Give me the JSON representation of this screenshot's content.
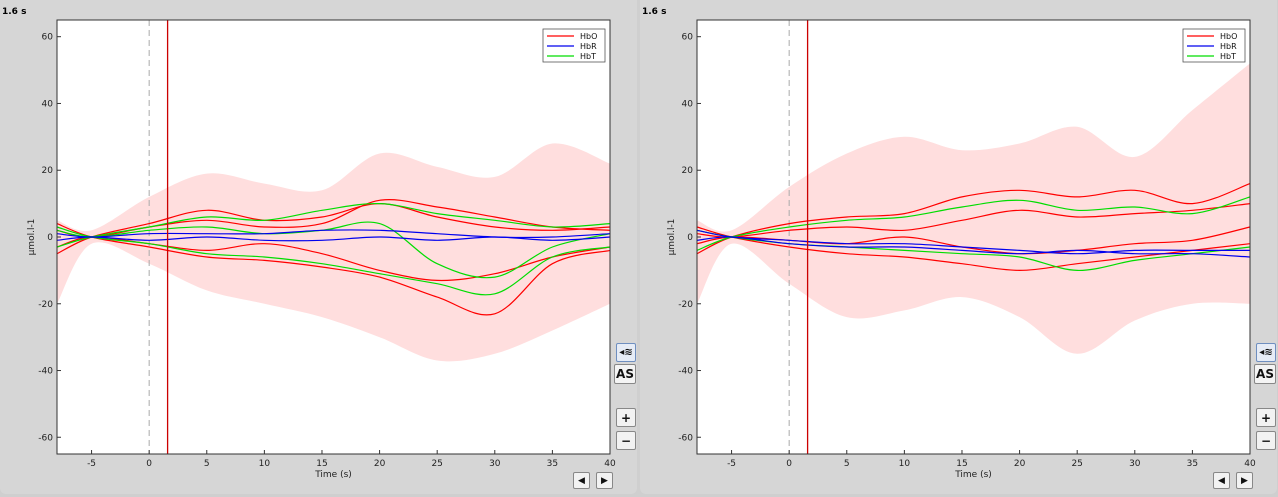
{
  "panels": [
    {
      "time_label": "1.6 s",
      "buttons": {
        "wave": "◂≋",
        "as": "AS",
        "zoom_in": "+",
        "zoom_out": "−",
        "prev": "◀",
        "next": "▶"
      }
    },
    {
      "time_label": "1.6 s",
      "buttons": {
        "wave": "◂≋",
        "as": "AS",
        "zoom_in": "+",
        "zoom_out": "−",
        "prev": "◀",
        "next": "▶"
      }
    }
  ],
  "colors": {
    "hbo": "#ff0000",
    "hbr": "#0000ee",
    "hbt": "#00dd00",
    "band": "#ffdede",
    "cursor": "#cc0000"
  },
  "chart_data": [
    {
      "type": "line",
      "title": "",
      "xlabel": "Time (s)",
      "ylabel": "μmol.l-1",
      "xlim": [
        -8,
        40
      ],
      "ylim": [
        -65,
        65
      ],
      "xticks": [
        -5,
        0,
        5,
        10,
        15,
        20,
        25,
        30,
        35,
        40
      ],
      "yticks": [
        -60,
        -40,
        -20,
        0,
        20,
        40,
        60
      ],
      "grid": false,
      "legend": {
        "position": "top-right",
        "entries": [
          "HbO",
          "HbR",
          "HbT"
        ]
      },
      "onset_line_x": 0,
      "cursor_x": 1.6,
      "band": {
        "x": [
          -8,
          -5,
          0,
          5,
          10,
          15,
          20,
          25,
          30,
          35,
          40
        ],
        "upper": [
          5,
          2,
          12,
          19,
          16,
          14,
          25,
          21,
          18,
          28,
          22
        ],
        "lower": [
          -20,
          -2,
          -8,
          -16,
          -20,
          -24,
          -30,
          -37,
          -35,
          -28,
          -20
        ]
      },
      "series": [
        {
          "name": "HbO",
          "x": [
            -8,
            -5,
            0,
            5,
            10,
            15,
            20,
            25,
            30,
            35,
            40
          ],
          "values": [
            -5,
            0,
            4,
            8,
            5,
            6,
            10,
            6,
            3,
            2,
            3
          ]
        },
        {
          "name": "HbO",
          "x": [
            -8,
            -5,
            0,
            5,
            10,
            15,
            20,
            25,
            30,
            35,
            40
          ],
          "values": [
            4,
            0,
            -3,
            -6,
            -7,
            -9,
            -12,
            -18,
            -23,
            -8,
            -4
          ]
        },
        {
          "name": "HbO",
          "x": [
            -8,
            -5,
            0,
            5,
            10,
            15,
            20,
            25,
            30,
            35,
            40
          ],
          "values": [
            2,
            0,
            3,
            5,
            3,
            4,
            11,
            9,
            6,
            3,
            2
          ]
        },
        {
          "name": "HbO",
          "x": [
            -8,
            -5,
            0,
            5,
            10,
            15,
            20,
            25,
            30,
            35,
            40
          ],
          "values": [
            -3,
            0,
            -2,
            -4,
            -2,
            -5,
            -10,
            -13,
            -11,
            -6,
            -3
          ]
        },
        {
          "name": "HbT",
          "x": [
            -8,
            -5,
            0,
            5,
            10,
            15,
            20,
            25,
            30,
            35,
            40
          ],
          "values": [
            -3,
            0,
            3,
            6,
            5,
            8,
            10,
            7,
            5,
            3,
            4
          ]
        },
        {
          "name": "HbT",
          "x": [
            -8,
            -5,
            0,
            5,
            10,
            15,
            20,
            25,
            30,
            35,
            40
          ],
          "values": [
            3,
            0,
            -2,
            -5,
            -6,
            -8,
            -11,
            -14,
            -17,
            -6,
            -3
          ]
        },
        {
          "name": "HbT",
          "x": [
            -8,
            -5,
            0,
            5,
            10,
            15,
            20,
            25,
            30,
            35,
            40
          ],
          "values": [
            2,
            0,
            2,
            3,
            1,
            2,
            4,
            -8,
            -12,
            -3,
            1
          ]
        },
        {
          "name": "HbR",
          "x": [
            -8,
            -5,
            0,
            5,
            10,
            15,
            20,
            25,
            30,
            35,
            40
          ],
          "values": [
            1,
            0,
            1,
            1,
            1,
            2,
            2,
            1,
            0,
            0,
            1
          ]
        },
        {
          "name": "HbR",
          "x": [
            -8,
            -5,
            0,
            5,
            10,
            15,
            20,
            25,
            30,
            35,
            40
          ],
          "values": [
            -1,
            0,
            -1,
            0,
            -1,
            -1,
            0,
            -1,
            0,
            -1,
            0
          ]
        }
      ]
    },
    {
      "type": "line",
      "title": "",
      "xlabel": "Time (s)",
      "ylabel": "μmol.l-1",
      "xlim": [
        -8,
        40
      ],
      "ylim": [
        -65,
        65
      ],
      "xticks": [
        -5,
        0,
        5,
        10,
        15,
        20,
        25,
        30,
        35,
        40
      ],
      "yticks": [
        -60,
        -40,
        -20,
        0,
        20,
        40,
        60
      ],
      "grid": false,
      "legend": {
        "position": "top-right",
        "entries": [
          "HbO",
          "HbR",
          "HbT"
        ]
      },
      "onset_line_x": 0,
      "cursor_x": 1.6,
      "band": {
        "x": [
          -8,
          -5,
          0,
          5,
          10,
          15,
          20,
          25,
          30,
          35,
          40
        ],
        "upper": [
          5,
          2,
          15,
          25,
          30,
          26,
          28,
          33,
          24,
          38,
          52
        ],
        "lower": [
          -20,
          -2,
          -14,
          -24,
          -22,
          -18,
          -24,
          -35,
          -25,
          -20,
          -20
        ]
      },
      "series": [
        {
          "name": "HbO",
          "x": [
            -8,
            -5,
            0,
            5,
            10,
            15,
            20,
            25,
            30,
            35,
            40
          ],
          "values": [
            -5,
            0,
            4,
            6,
            7,
            12,
            14,
            12,
            14,
            10,
            16
          ]
        },
        {
          "name": "HbO",
          "x": [
            -8,
            -5,
            0,
            5,
            10,
            15,
            20,
            25,
            30,
            35,
            40
          ],
          "values": [
            3,
            0,
            -3,
            -5,
            -6,
            -8,
            -10,
            -8,
            -6,
            -4,
            -2
          ]
        },
        {
          "name": "HbO",
          "x": [
            -8,
            -5,
            0,
            5,
            10,
            15,
            20,
            25,
            30,
            35,
            40
          ],
          "values": [
            1,
            0,
            2,
            3,
            2,
            5,
            8,
            6,
            7,
            8,
            10
          ]
        },
        {
          "name": "HbO",
          "x": [
            -8,
            -5,
            0,
            5,
            10,
            15,
            20,
            25,
            30,
            35,
            40
          ],
          "values": [
            -2,
            0,
            -1,
            -2,
            0,
            -3,
            -5,
            -4,
            -2,
            -1,
            3
          ]
        },
        {
          "name": "HbT",
          "x": [
            -8,
            -5,
            0,
            5,
            10,
            15,
            20,
            25,
            30,
            35,
            40
          ],
          "values": [
            -4,
            0,
            3,
            5,
            6,
            9,
            11,
            8,
            9,
            7,
            12
          ]
        },
        {
          "name": "HbT",
          "x": [
            -8,
            -5,
            0,
            5,
            10,
            15,
            20,
            25,
            30,
            35,
            40
          ],
          "values": [
            2,
            0,
            -2,
            -3,
            -4,
            -5,
            -6,
            -10,
            -7,
            -5,
            -3
          ]
        },
        {
          "name": "HbR",
          "x": [
            -8,
            -5,
            0,
            5,
            10,
            15,
            20,
            25,
            30,
            35,
            40
          ],
          "values": [
            2,
            0,
            -1,
            -2,
            -2,
            -3,
            -4,
            -5,
            -4,
            -4,
            -4
          ]
        },
        {
          "name": "HbR",
          "x": [
            -8,
            -5,
            0,
            5,
            10,
            15,
            20,
            25,
            30,
            35,
            40
          ],
          "values": [
            -1,
            0,
            -2,
            -3,
            -3,
            -4,
            -5,
            -4,
            -5,
            -5,
            -6
          ]
        }
      ]
    }
  ]
}
